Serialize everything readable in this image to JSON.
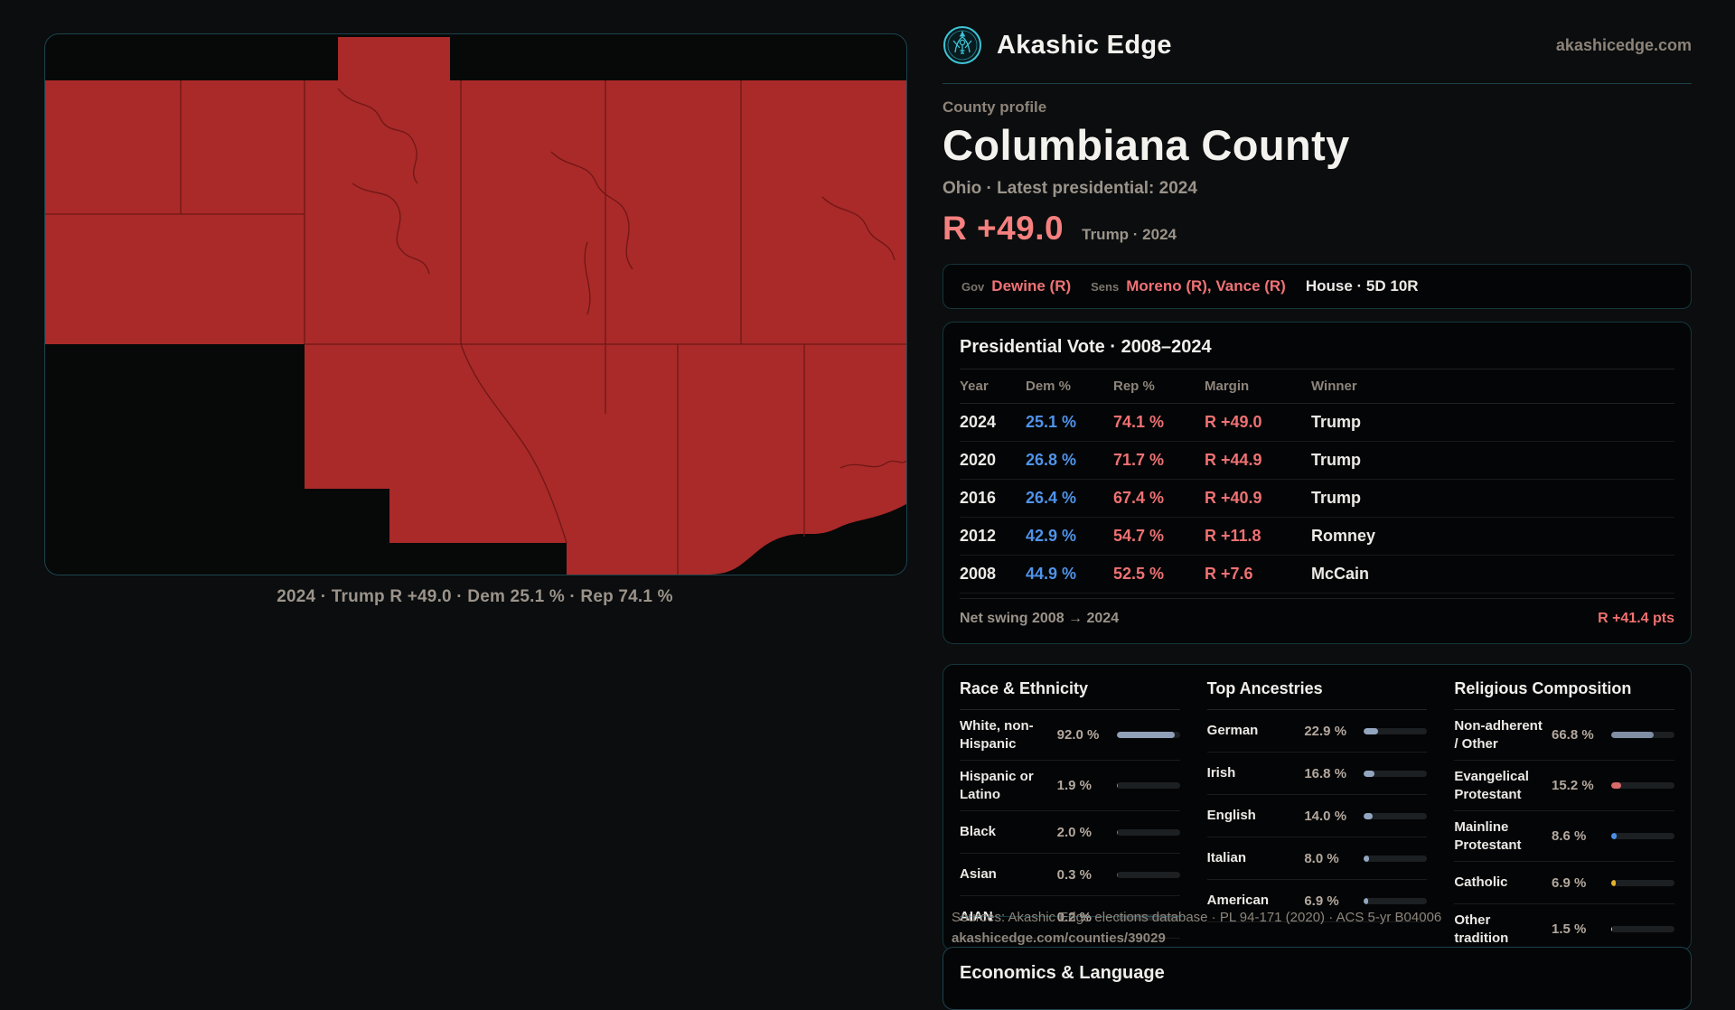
{
  "header": {
    "brand": "Akashic Edge",
    "domain": "akashicedge.com"
  },
  "profile": {
    "eyebrow": "County profile",
    "title": "Columbiana County",
    "subtitle": "Ohio · Latest presidential: 2024",
    "stat": "R +49.0",
    "stat_note": "Trump · 2024"
  },
  "officials": {
    "gov_label": "Gov",
    "gov": "Dewine (R)",
    "sens_label": "Sens",
    "sens": "Moreno (R), Vance (R)",
    "house": "House · 5D 10R"
  },
  "map": {
    "caption": "2024 · Trump R +49.0 · Dem 25.1 % · Rep 74.1 %",
    "fill": "#a92a28",
    "line": "#6f1716"
  },
  "vote": {
    "title": "Presidential Vote · 2008–2024",
    "columns": [
      "Year",
      "Dem %",
      "Rep %",
      "Margin",
      "Winner"
    ],
    "rows": [
      {
        "year": "2024",
        "dem": "25.1 %",
        "rep": "74.1 %",
        "margin": "R +49.0",
        "winner": "Trump"
      },
      {
        "year": "2020",
        "dem": "26.8 %",
        "rep": "71.7 %",
        "margin": "R +44.9",
        "winner": "Trump"
      },
      {
        "year": "2016",
        "dem": "26.4 %",
        "rep": "67.4 %",
        "margin": "R +40.9",
        "winner": "Trump"
      },
      {
        "year": "2012",
        "dem": "42.9 %",
        "rep": "54.7 %",
        "margin": "R +11.8",
        "winner": "Romney"
      },
      {
        "year": "2008",
        "dem": "44.9 %",
        "rep": "52.5 %",
        "margin": "R +7.6",
        "winner": "McCain"
      }
    ],
    "net_label": "Net swing 2008 → 2024",
    "net_value": "R +41.4 pts"
  },
  "demographics": {
    "race": {
      "title": "Race & Ethnicity",
      "rows": [
        {
          "label": "White, non-Hispanic",
          "value": "92.0 %",
          "pct": 92.0,
          "color": "#8fa0b8"
        },
        {
          "label": "Hispanic or Latino",
          "value": "1.9 %",
          "pct": 1.9,
          "color": "#c07f2a"
        },
        {
          "label": "Black",
          "value": "2.0 %",
          "pct": 2.0,
          "color": "#7a72cf"
        },
        {
          "label": "Asian",
          "value": "0.3 %",
          "pct": 0.3,
          "color": "#5a6066"
        },
        {
          "label": "AIAN",
          "value": "0.2 %",
          "pct": 0.2,
          "color": "#5a6066"
        }
      ]
    },
    "ancestries": {
      "title": "Top Ancestries",
      "rows": [
        {
          "label": "German",
          "value": "22.9 %",
          "pct": 22.9,
          "color": "#93a6c0"
        },
        {
          "label": "Irish",
          "value": "16.8 %",
          "pct": 16.8,
          "color": "#93a6c0"
        },
        {
          "label": "English",
          "value": "14.0 %",
          "pct": 14.0,
          "color": "#93a6c0"
        },
        {
          "label": "Italian",
          "value": "8.0 %",
          "pct": 8.0,
          "color": "#93a6c0"
        },
        {
          "label": "American",
          "value": "6.9 %",
          "pct": 6.9,
          "color": "#93a6c0"
        }
      ]
    },
    "religion": {
      "title": "Religious Composition",
      "rows": [
        {
          "label": "Non-adherent / Other",
          "value": "66.8 %",
          "pct": 66.8,
          "color": "#7f8ea3"
        },
        {
          "label": "Evangelical Protestant",
          "value": "15.2 %",
          "pct": 15.2,
          "color": "#d96a6a"
        },
        {
          "label": "Mainline Protestant",
          "value": "8.6 %",
          "pct": 8.6,
          "color": "#4b8fe2"
        },
        {
          "label": "Catholic",
          "value": "6.9 %",
          "pct": 6.9,
          "color": "#e5b22e"
        },
        {
          "label": "Other tradition",
          "value": "1.5 %",
          "pct": 1.5,
          "color": "#cfcfcf"
        }
      ]
    }
  },
  "sources": {
    "line1": "Sources: Akashic Edge elections database · PL 94-171 (2020) · ACS 5-yr B04006",
    "line2": "akashicedge.com/counties/39029"
  },
  "economics": {
    "title": "Economics & Language"
  },
  "colors": {
    "accent_teal": "#3fc4d6",
    "dem_blue": "#4f93ea",
    "rep_red": "#ee7173",
    "stat_red": "#f5807f",
    "map_red": "#a92a28"
  }
}
